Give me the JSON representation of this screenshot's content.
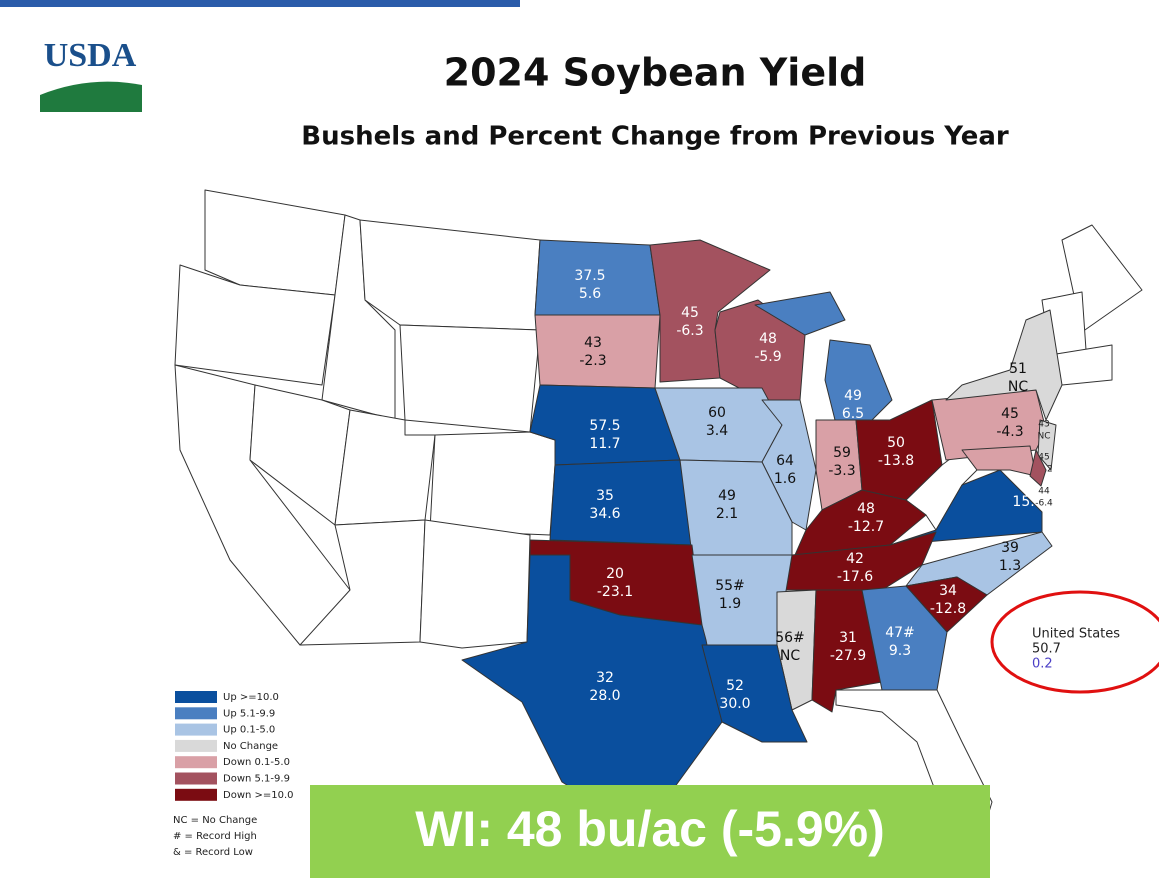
{
  "header": {
    "logo": "USDA",
    "title": "2024 Soybean Yield",
    "subtitle": "Bushels and Percent Change from Previous Year"
  },
  "states": [
    {
      "yield": "37.5",
      "change": "5.6",
      "color": "#4a7fc1"
    },
    {
      "yield": "43",
      "change": "-2.3",
      "color": "#d9a0a6"
    },
    {
      "yield": "45",
      "change": "-6.3",
      "color": "#a3525f"
    },
    {
      "yield": "48",
      "change": "-5.9",
      "color": "#a3525f"
    },
    {
      "yield": "49",
      "change": "6.5",
      "color": "#4a7fc1"
    },
    {
      "yield": "57.5",
      "change": "11.7",
      "color": "#0a4f9e"
    },
    {
      "yield": "60",
      "change": "3.4",
      "color": "#a9c4e4"
    },
    {
      "yield": "64",
      "change": "1.6",
      "color": "#a9c4e4"
    },
    {
      "yield": "59",
      "change": "-3.3",
      "color": "#d9a0a6"
    },
    {
      "yield": "50",
      "change": "-13.8",
      "color": "#7b0c12"
    },
    {
      "yield": "35",
      "change": "34.6",
      "color": "#0a4f9e"
    },
    {
      "yield": "49",
      "change": "2.1",
      "color": "#a9c4e4"
    },
    {
      "yield": "48",
      "change": "-12.7",
      "color": "#7b0c12"
    },
    {
      "yield": "45",
      "change": "-4.3",
      "color": "#d9a0a6"
    },
    {
      "yield": "44",
      "change": "15.8",
      "color": "#0a4f9e"
    },
    {
      "yield": "20",
      "change": "-23.1",
      "color": "#7b0c12"
    },
    {
      "yield": "42",
      "change": "-17.6",
      "color": "#7b0c12"
    },
    {
      "yield": "39",
      "change": "1.3",
      "color": "#a9c4e4"
    },
    {
      "yield": "55#",
      "change": "1.9",
      "color": "#a9c4e4"
    },
    {
      "yield": "34",
      "change": "-12.8",
      "color": "#7b0c12"
    },
    {
      "yield": "56#",
      "change": "NC",
      "color": "#d9d9d9"
    },
    {
      "yield": "31",
      "change": "-27.9",
      "color": "#7b0c12"
    },
    {
      "yield": "47#",
      "change": "9.3",
      "color": "#4a7fc1"
    },
    {
      "yield": "32",
      "change": "28.0",
      "color": "#0a4f9e"
    },
    {
      "yield": "52",
      "change": "30.0",
      "color": "#0a4f9e"
    },
    {
      "yield": "51",
      "change": "NC",
      "color": "#d9d9d9"
    },
    {
      "yield": "43",
      "change": "NC",
      "color": "#d9d9d9"
    },
    {
      "yield": "45",
      "change": "-2.2",
      "color": "#d9a0a6"
    },
    {
      "yield": "44",
      "change": "-6.4",
      "color": "#a3525f"
    }
  ],
  "legend": {
    "items": [
      {
        "label": "Up >=10.0",
        "color": "#0a4f9e"
      },
      {
        "label": "Up 5.1-9.9",
        "color": "#4a7fc1"
      },
      {
        "label": "Up 0.1-5.0",
        "color": "#a9c4e4"
      },
      {
        "label": "No Change",
        "color": "#d9d9d9"
      },
      {
        "label": "Down 0.1-5.0",
        "color": "#d9a0a6"
      },
      {
        "label": "Down 5.1-9.9",
        "color": "#a3525f"
      },
      {
        "label": "Down >=10.0",
        "color": "#7b0c12"
      }
    ],
    "notes": [
      "NC = No Change",
      "# = Record High",
      "& = Record Low"
    ]
  },
  "us_total": {
    "label": "United States",
    "yield": "50.7",
    "change": "0.2"
  },
  "banner": "WI: 48 bu/ac (-5.9%)"
}
